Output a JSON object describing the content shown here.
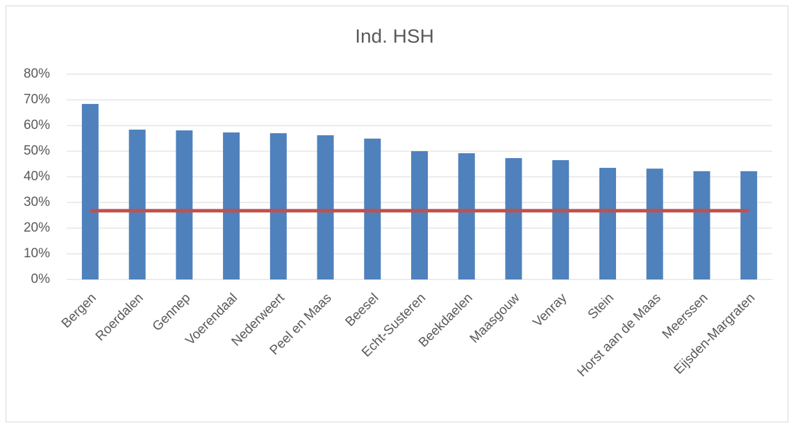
{
  "chart_data": {
    "type": "bar",
    "title": "Ind. HSH",
    "categories": [
      "Bergen",
      "Roerdalen",
      "Gennep",
      "Voerendaal",
      "Nederweert",
      "Peel en Maas",
      "Beesel",
      "Echt-Susteren",
      "Beekdaelen",
      "Maasgouw",
      "Venray",
      "Stein",
      "Horst aan de Maas",
      "Meerssen",
      "Eijsden-Margraten"
    ],
    "series": [
      {
        "type": "bar",
        "color": "#4f81bd",
        "values": [
          68.4,
          58.4,
          58.1,
          57.3,
          57.0,
          56.2,
          54.9,
          50.0,
          49.2,
          47.3,
          46.5,
          43.5,
          43.2,
          42.2,
          42.2
        ]
      },
      {
        "type": "line",
        "color": "#c0504d",
        "values": [
          26.8,
          26.8,
          26.8,
          26.8,
          26.8,
          26.8,
          26.8,
          26.8,
          26.8,
          26.8,
          26.8,
          26.8,
          26.8,
          26.8,
          26.8
        ]
      }
    ],
    "ylim": [
      0,
      80
    ],
    "yticks": [
      {
        "value": 0,
        "label": "0%"
      },
      {
        "value": 10,
        "label": "10%"
      },
      {
        "value": 20,
        "label": "20%"
      },
      {
        "value": 30,
        "label": "30%"
      },
      {
        "value": 40,
        "label": "40%"
      },
      {
        "value": 50,
        "label": "50%"
      },
      {
        "value": 60,
        "label": "60%"
      },
      {
        "value": 70,
        "label": "70%"
      },
      {
        "value": 80,
        "label": "80%"
      }
    ],
    "grid": true
  }
}
